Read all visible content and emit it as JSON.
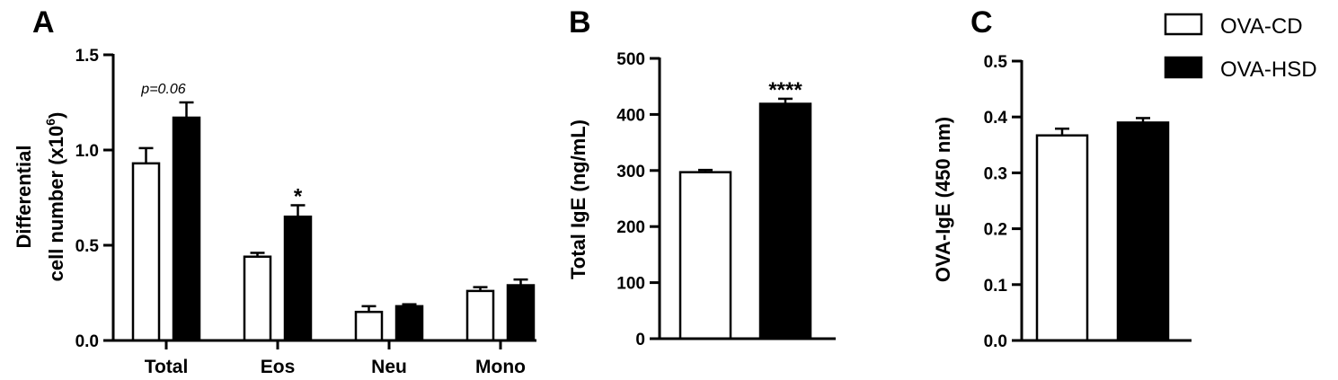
{
  "legend": [
    {
      "label": "OVA-CD",
      "fill": "#ffffff"
    },
    {
      "label": "OVA-HSD",
      "fill": "#000000"
    }
  ],
  "chart_data": [
    {
      "panel": "A",
      "type": "bar",
      "categories": [
        "Total",
        "Eos",
        "Neu",
        "Mono"
      ],
      "ylabel_line1": "Differential",
      "ylabel_line2": "cell number  (x10",
      "ylabel_sup": "6",
      "ylabel_close": ")",
      "ylim": [
        0,
        1.5
      ],
      "yticks": [
        "0.0",
        "0.5",
        "1.0",
        "1.5"
      ],
      "series": [
        {
          "name": "OVA-CD",
          "values": [
            0.93,
            0.44,
            0.15,
            0.26
          ],
          "errors": [
            0.08,
            0.02,
            0.03,
            0.02
          ]
        },
        {
          "name": "OVA-HSD",
          "values": [
            1.17,
            0.65,
            0.18,
            0.29
          ],
          "errors": [
            0.08,
            0.06,
            0.01,
            0.03
          ]
        }
      ],
      "annotations": [
        {
          "category": "Total",
          "text": "p=0.06",
          "style": "italic"
        },
        {
          "category": "Eos",
          "text": "*",
          "style": "bold"
        }
      ]
    },
    {
      "panel": "B",
      "type": "bar",
      "ylabel": "Total IgE (ng/mL)",
      "ylim": [
        0,
        500
      ],
      "yticks": [
        "0",
        "100",
        "200",
        "300",
        "400",
        "500"
      ],
      "series": [
        {
          "name": "OVA-CD",
          "values": [
            297
          ],
          "errors": [
            4
          ]
        },
        {
          "name": "OVA-HSD",
          "values": [
            419
          ],
          "errors": [
            9
          ]
        }
      ],
      "annotations": [
        {
          "text": "****",
          "style": "bold"
        }
      ]
    },
    {
      "panel": "C",
      "type": "bar",
      "ylabel": "OVA-IgE  (450 nm)",
      "ylim": [
        0,
        0.5
      ],
      "yticks": [
        "0.0",
        "0.1",
        "0.2",
        "0.3",
        "0.4",
        "0.5"
      ],
      "series": [
        {
          "name": "OVA-CD",
          "values": [
            0.367
          ],
          "errors": [
            0.012
          ]
        },
        {
          "name": "OVA-HSD",
          "values": [
            0.39
          ],
          "errors": [
            0.008
          ]
        }
      ],
      "annotations": []
    }
  ]
}
